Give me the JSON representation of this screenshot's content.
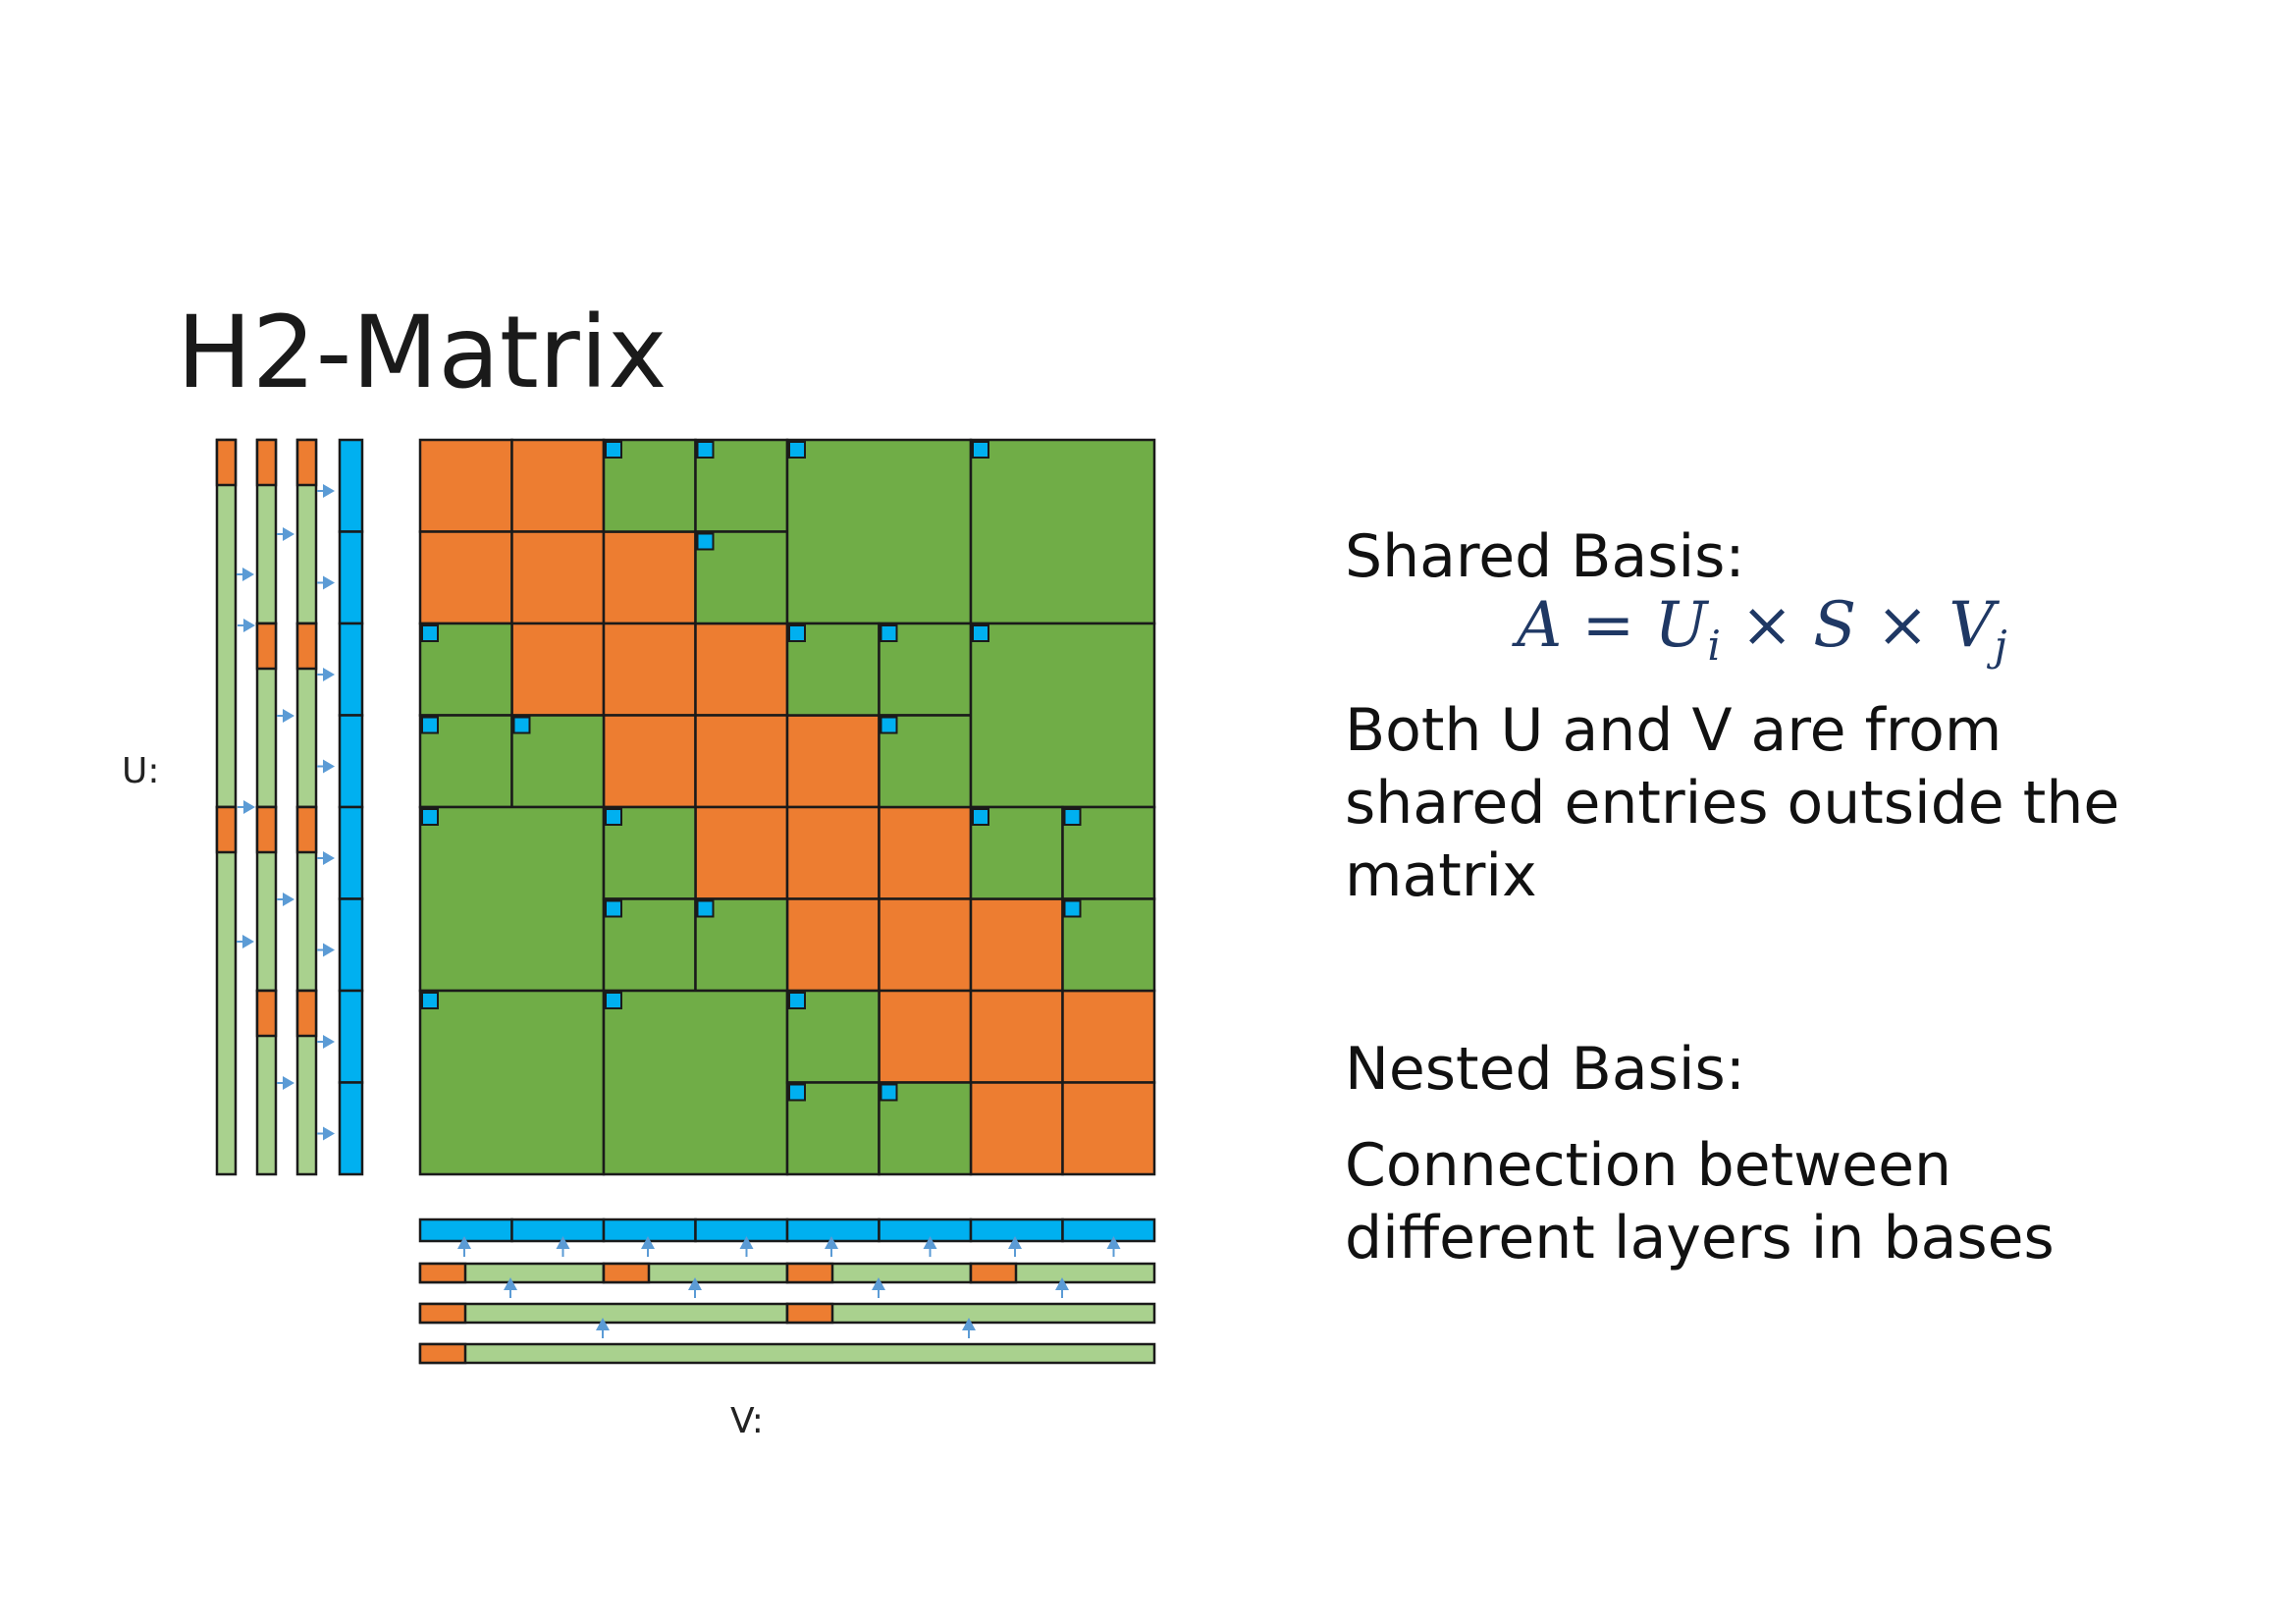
{
  "title": "H2-Matrix",
  "u_label": "U:",
  "v_label": "V:",
  "shared_basis": {
    "heading": "Shared Basis:",
    "formula": {
      "lhs": "A",
      "eq": " = ",
      "U": "U",
      "U_sub": "i",
      "times": " × ",
      "S": "S",
      "V": "V",
      "V_sub": "j"
    },
    "description": "Both U and V are from shared entries outside the matrix"
  },
  "nested_basis": {
    "heading": "Nested Basis:",
    "description": "Connection between different layers in bases"
  },
  "colors": {
    "dense": "#ED7D31",
    "low_rank": "#70AD47",
    "basis_light": "#A9D18E",
    "coupling": "#00B0F0",
    "arrow": "#5B9BD5",
    "stroke": "#1a1a1a"
  }
}
